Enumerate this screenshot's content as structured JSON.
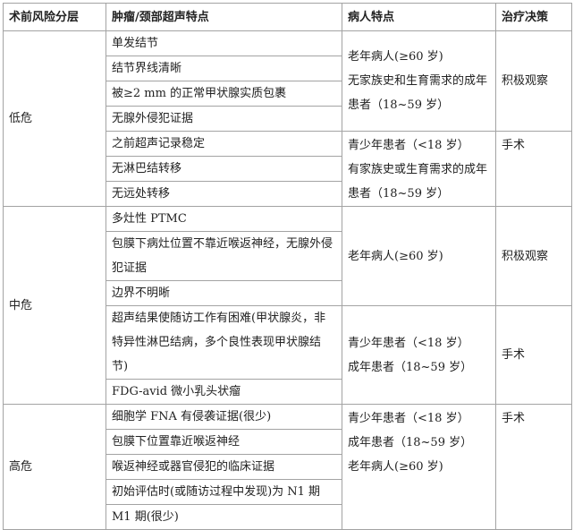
{
  "headers": [
    "术前风险分层",
    "肿瘤/颈部超声特点",
    "病人特点",
    "治疗决策"
  ],
  "groups": [
    {
      "risk": "低危",
      "blocks": [
        {
          "features": [
            "单发结节",
            "结节界线清晰",
            "被≥2 mm 的正常甲状腺实质包裹",
            "无腺外侵犯证据"
          ],
          "patients": [
            "老年病人(≥60 岁)",
            "无家族史和生育需求的成年患者（18~59 岁）"
          ],
          "decision": "积极观察"
        },
        {
          "features": [
            "之前超声记录稳定",
            "无淋巴结转移",
            "无远处转移"
          ],
          "patients": [
            "青少年患者（<18 岁）",
            "有家族史或生育需求的成年患者（18~59 岁）"
          ],
          "decision": "手术"
        }
      ]
    },
    {
      "risk": "中危",
      "blocks": [
        {
          "features": [
            "多灶性 PTMC",
            "包膜下病灶位置不靠近喉返神经，无腺外侵犯证据",
            "边界不明晰"
          ],
          "patients": [
            "老年病人(≥60 岁)"
          ],
          "decision": "积极观察"
        },
        {
          "features": [
            "超声结果使随访工作有困难(甲状腺炎，非特异性淋巴结病，多个良性表现甲状腺结节)",
            "FDG-avid 微小乳头状瘤"
          ],
          "patients": [
            "青少年患者（<18 岁）",
            "成年患者（18~59 岁）"
          ],
          "decision": "手术"
        }
      ]
    },
    {
      "risk": "高危",
      "blocks": [
        {
          "features": [
            "细胞学 FNA 有侵袭证据(很少)",
            "包膜下位置靠近喉返神经",
            "喉返神经或器官侵犯的临床证据",
            "初始评估时(或随访过程中发现)为 N1 期",
            "M1 期(很少)"
          ],
          "patients": [
            "青少年患者（<18 岁）",
            "成年患者（18~59 岁）",
            "老年病人(≥60 岁)"
          ],
          "decision": "手术"
        }
      ]
    }
  ]
}
